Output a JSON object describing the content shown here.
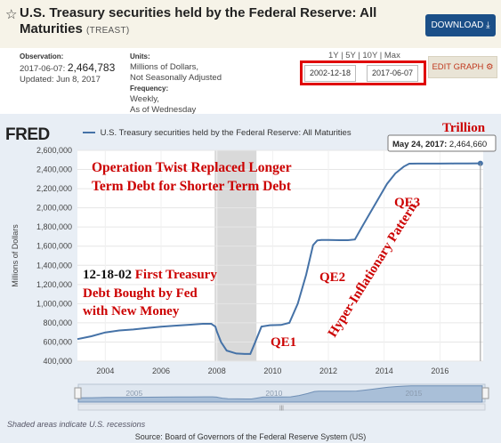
{
  "header": {
    "title": "U.S. Treasury securities held by the Federal Reserve: All Maturities",
    "series_code": "(TREAST)",
    "download_label": "DOWNLOAD",
    "icons": {
      "favorite": "star-icon",
      "download": "download-arrow-icon",
      "edit": "gear-icon"
    }
  },
  "meta": {
    "observation_label": "Observation:",
    "observation_date": "2017-06-07:",
    "observation_value": "2,464,783",
    "updated": "Updated: Jun 8, 2017",
    "units_label": "Units:",
    "units_line1": "Millions of Dollars,",
    "units_line2": "Not Seasonally Adjusted",
    "frequency_label": "Frequency:",
    "frequency_line1": "Weekly,",
    "frequency_line2": "As of Wednesday"
  },
  "controls": {
    "range_links": "1Y | 5Y | 10Y | Max",
    "start_date": "2002-12-18",
    "end_date": "2017-06-07",
    "edit_label": "EDIT GRAPH"
  },
  "chart_header": {
    "logo": "FRED",
    "legend_label": "U.S. Treasury securities held by the Federal Reserve: All Maturities"
  },
  "footer": {
    "recession_note": "Shaded areas indicate U.S. recessions",
    "source": "Source: Board of Governors of the Federal Reserve System (US)"
  },
  "colors": {
    "line": "#4572a7",
    "recession": "#d9d9d9",
    "annotation": "#cc0000",
    "download_bg": "#1b4f88"
  },
  "chart_data": {
    "type": "line",
    "ylabel": "Millions of Dollars",
    "ylim": [
      400000,
      2600000
    ],
    "xlim": [
      2003.0,
      2017.55
    ],
    "y_ticks": [
      400000,
      600000,
      800000,
      1000000,
      1200000,
      1400000,
      1600000,
      1800000,
      2000000,
      2200000,
      2400000,
      2600000
    ],
    "y_tick_labels": [
      "400,000",
      "600,000",
      "800,000",
      "1,000,000",
      "1,200,000",
      "1,400,000",
      "1,600,000",
      "1,800,000",
      "2,000,000",
      "2,200,000",
      "2,400,000",
      "2,600,000"
    ],
    "x_ticks": [
      2004,
      2006,
      2008,
      2010,
      2012,
      2014,
      2016
    ],
    "x_tick_labels": [
      "2004",
      "2006",
      "2008",
      "2010",
      "2012",
      "2014",
      "2016"
    ],
    "recession": [
      2007.92,
      2009.42
    ],
    "grid": true,
    "series": [
      {
        "x": [
          2003.0,
          2003.5,
          2004.0,
          2004.5,
          2005.0,
          2005.5,
          2006.0,
          2006.5,
          2007.0,
          2007.5,
          2007.8,
          2007.95,
          2008.0,
          2008.15,
          2008.35,
          2008.7,
          2009.0,
          2009.2,
          2009.35,
          2009.6,
          2009.9,
          2010.3,
          2010.6,
          2010.9,
          2011.2,
          2011.45,
          2011.6,
          2011.75,
          2012.0,
          2012.4,
          2012.7,
          2012.95,
          2013.2,
          2013.5,
          2013.8,
          2014.1,
          2014.4,
          2014.7,
          2014.9,
          2015.2,
          2016.0,
          2016.5,
          2017.0,
          2017.45
        ],
        "y": [
          630000,
          660000,
          700000,
          720000,
          730000,
          745000,
          760000,
          770000,
          780000,
          790000,
          790000,
          760000,
          710000,
          600000,
          510000,
          480000,
          475000,
          475000,
          580000,
          760000,
          775000,
          778000,
          800000,
          1000000,
          1300000,
          1610000,
          1660000,
          1665000,
          1665000,
          1662000,
          1662000,
          1670000,
          1800000,
          1950000,
          2100000,
          2250000,
          2360000,
          2430000,
          2461000,
          2461500,
          2462000,
          2463000,
          2464000,
          2464660
        ]
      }
    ],
    "tooltip": {
      "label": "May 24, 2017:",
      "value": "2,464,660"
    },
    "annotations": [
      {
        "text": "Trillion"
      },
      {
        "text": "Operation Twist Replaced Longer"
      },
      {
        "text": "Term Debt for Shorter Term Debt"
      },
      {
        "text": "QE3"
      },
      {
        "text": "Hyper-Inflationary Pattern"
      },
      {
        "text": "12-18-02 First Treasury"
      },
      {
        "text": "Debt Bought by Fed"
      },
      {
        "text": "with New Money"
      },
      {
        "text": "QE2"
      },
      {
        "text": "QE1"
      }
    ],
    "navigator": {
      "labels": [
        "2005",
        "2010",
        "2015"
      ],
      "handle_glyph": "|||"
    }
  }
}
